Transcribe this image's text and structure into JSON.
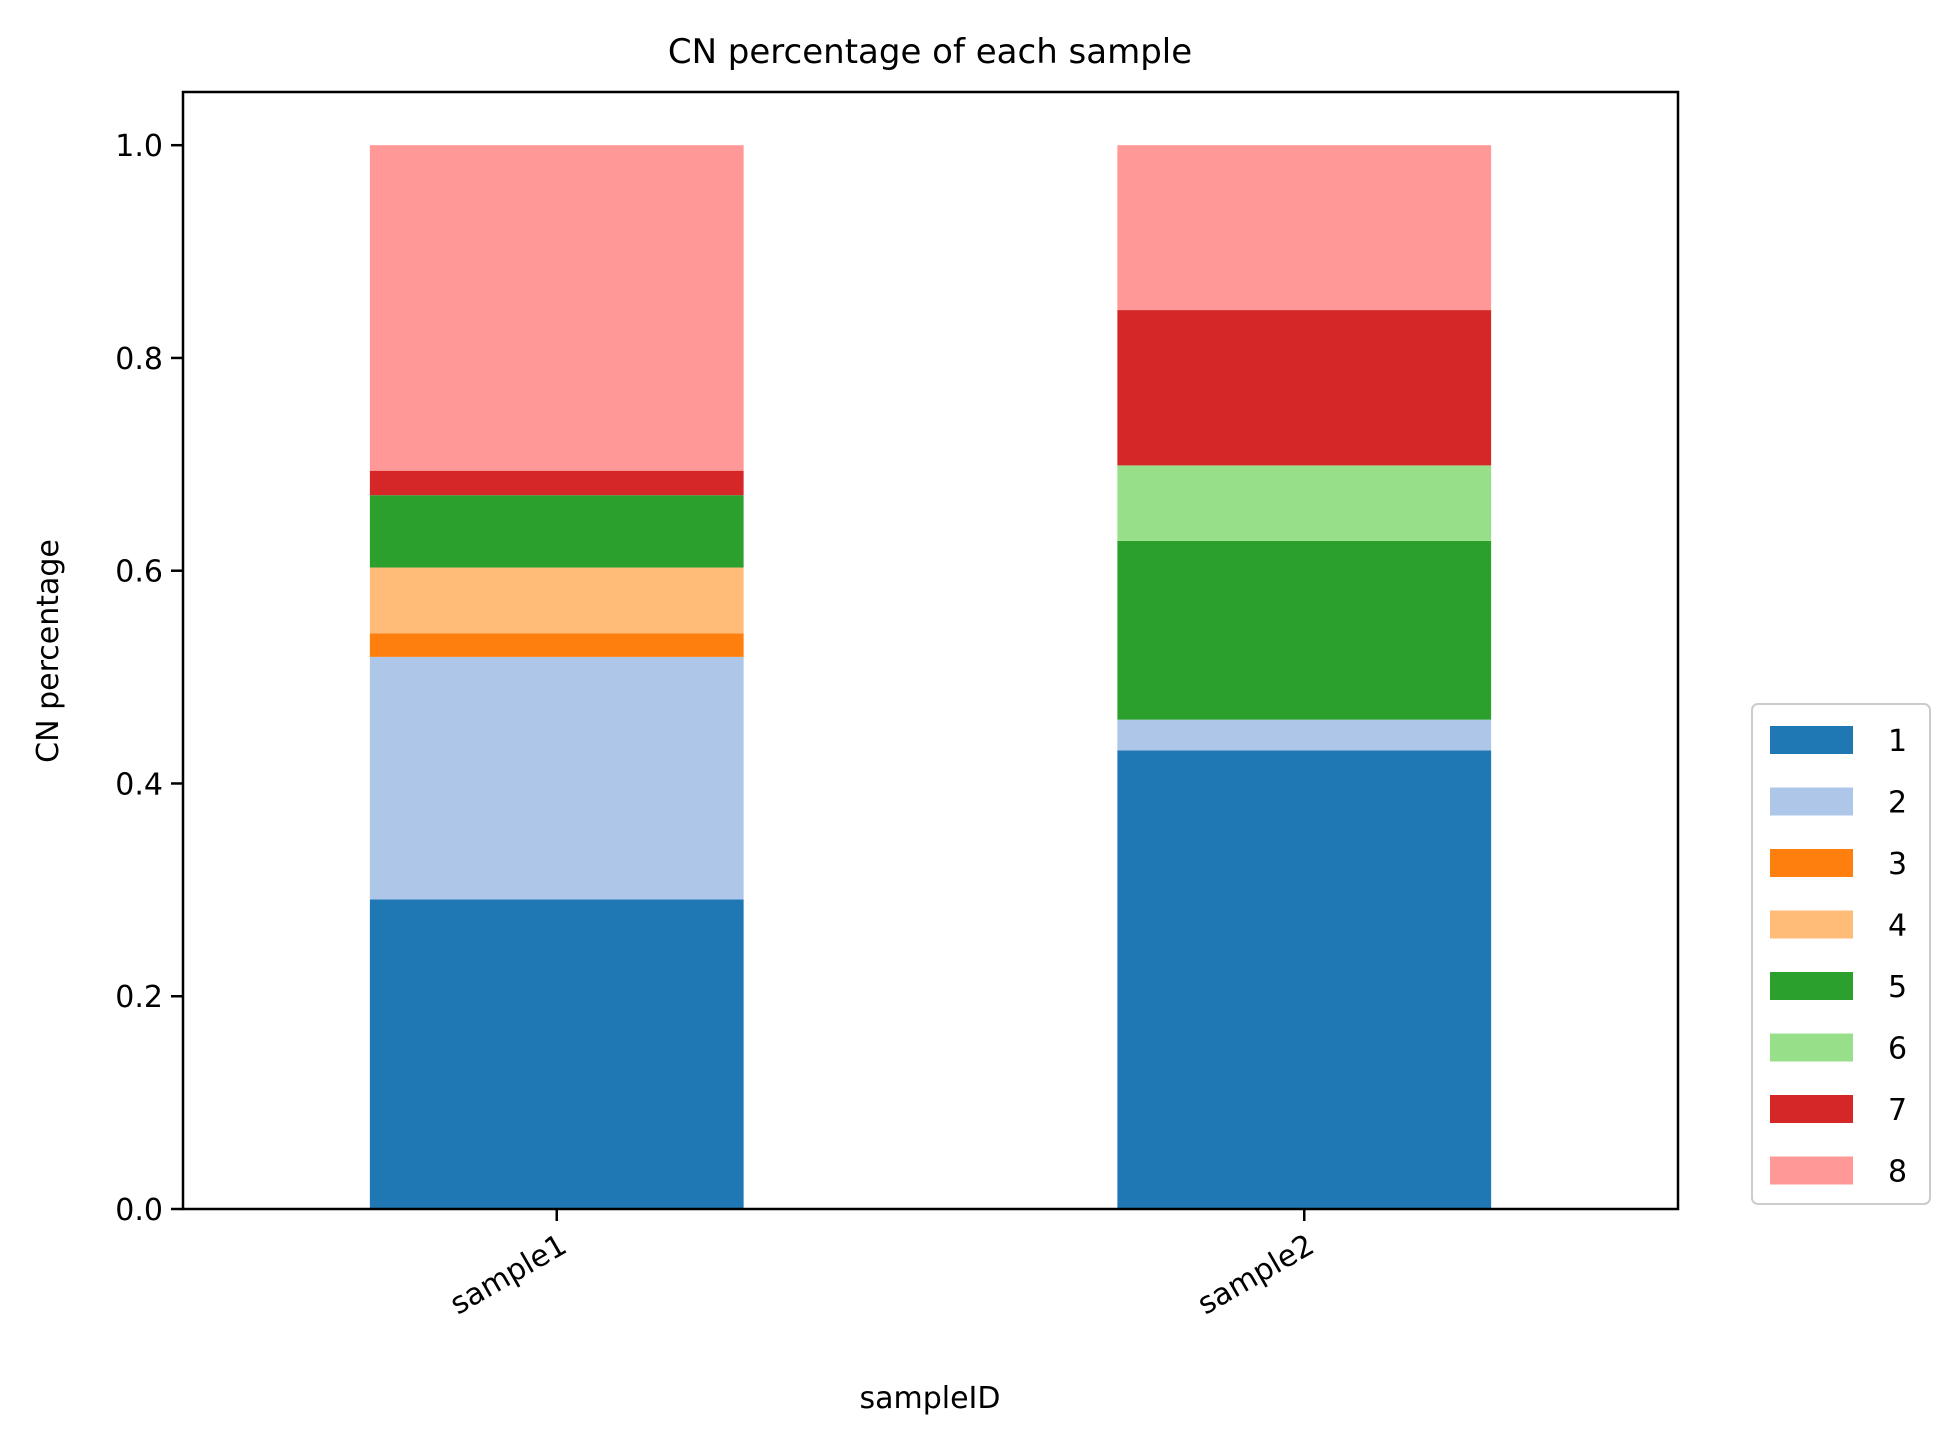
{
  "chart_data": {
    "type": "bar",
    "stacked": true,
    "title": "CN percentage of each sample",
    "xlabel": "sampleID",
    "ylabel": "CN percentage",
    "categories": [
      "sample1",
      "sample2"
    ],
    "ylim": [
      0,
      1.05
    ],
    "yticks": [
      0.0,
      0.2,
      0.4,
      0.6,
      0.8,
      1.0
    ],
    "ytick_labels": [
      "0.0",
      "0.2",
      "0.4",
      "0.6",
      "0.8",
      "1.0"
    ],
    "grid": false,
    "legend_position": "right, outside plot, lower",
    "series": [
      {
        "name": "1",
        "color": "#1f77b4",
        "values": [
          0.291,
          0.431
        ]
      },
      {
        "name": "2",
        "color": "#aec7e8",
        "values": [
          0.228,
          0.029
        ]
      },
      {
        "name": "3",
        "color": "#ff7f0e",
        "values": [
          0.022,
          0.0
        ]
      },
      {
        "name": "4",
        "color": "#ffbb78",
        "values": [
          0.062,
          0.0
        ]
      },
      {
        "name": "5",
        "color": "#2ca02c",
        "values": [
          0.068,
          0.168
        ]
      },
      {
        "name": "6",
        "color": "#98df8a",
        "values": [
          0.0,
          0.071
        ]
      },
      {
        "name": "7",
        "color": "#d62728",
        "values": [
          0.023,
          0.146
        ]
      },
      {
        "name": "8",
        "color": "#ff9896",
        "values": [
          0.306,
          0.155
        ]
      }
    ]
  }
}
